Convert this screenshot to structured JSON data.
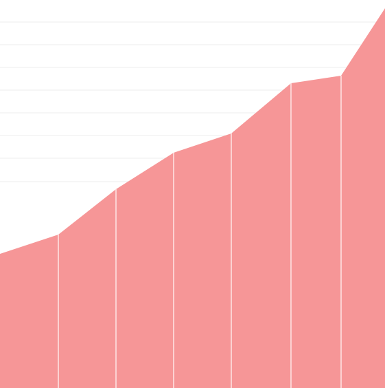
{
  "chart_data": {
    "type": "area",
    "x": [
      0,
      1,
      2,
      3,
      4,
      5,
      6,
      7
    ],
    "values": [
      195,
      223,
      289,
      342,
      370,
      443,
      454,
      552
    ],
    "ylim": [
      0,
      564
    ],
    "grid": true,
    "colors": {
      "fill": "#f69697",
      "separator": "#fde6e6",
      "grid": "#eeeeee"
    }
  }
}
